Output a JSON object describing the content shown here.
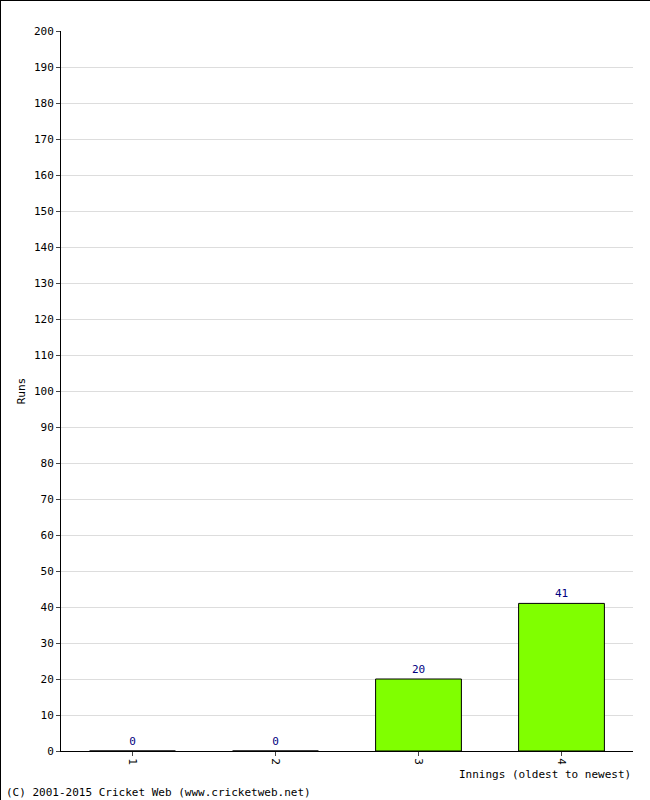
{
  "chart_data": {
    "type": "bar",
    "categories": [
      "1",
      "2",
      "3",
      "4"
    ],
    "values": [
      0,
      0,
      20,
      41
    ],
    "color": "#80ff00",
    "x_label": "Innings (oldest to newest)",
    "y_label": "Runs",
    "ylim": [
      0,
      200
    ],
    "yticks": [
      0,
      10,
      20,
      30,
      40,
      50,
      60,
      70,
      80,
      90,
      100,
      110,
      120,
      130,
      140,
      150,
      160,
      170,
      180,
      190,
      200
    ],
    "grid": true,
    "data_labels": true,
    "annotations": [
      "(C) 2001-2015 Cricket Web (www.cricketweb.net)"
    ]
  }
}
